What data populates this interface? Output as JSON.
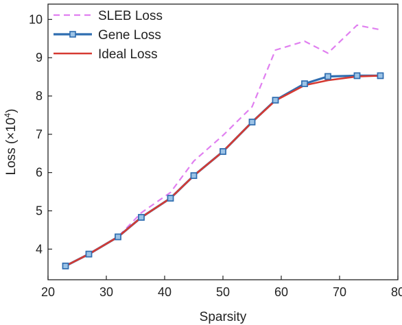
{
  "chart_data": {
    "type": "line",
    "xlabel": "Sparsity",
    "ylabel": "Loss (×10",
    "ylabel_sup": "4",
    "ylabel_close": ")",
    "xlim": [
      20,
      80
    ],
    "ylim": [
      3.2,
      10.4
    ],
    "xticks": [
      20,
      30,
      40,
      50,
      60,
      70,
      80
    ],
    "yticks": [
      4,
      5,
      6,
      7,
      8,
      9,
      10
    ],
    "grid": false,
    "legend_position": "top-left",
    "series": [
      {
        "name": "SLEB Loss",
        "color": "#e07ff0",
        "style": "dashed",
        "x": [
          23,
          27,
          32,
          36,
          41,
          45,
          50,
          55,
          59,
          64,
          68,
          73,
          77
        ],
        "y": [
          3.56,
          3.88,
          4.32,
          4.95,
          5.48,
          6.3,
          6.97,
          7.72,
          9.2,
          9.43,
          9.12,
          9.85,
          9.73
        ]
      },
      {
        "name": "Gene Loss",
        "color": "#2f6db0",
        "style": "solid",
        "marker": "square",
        "x": [
          23,
          27,
          32,
          36,
          41,
          45,
          50,
          55,
          59,
          64,
          68,
          73,
          77
        ],
        "y": [
          3.56,
          3.87,
          4.32,
          4.83,
          5.33,
          5.92,
          6.55,
          7.32,
          7.89,
          8.32,
          8.51,
          8.53,
          8.53
        ]
      },
      {
        "name": "Ideal Loss",
        "color": "#d63a32",
        "style": "solid",
        "x": [
          23,
          27,
          32,
          36,
          41,
          45,
          50,
          55,
          59,
          64,
          68,
          73,
          77
        ],
        "y": [
          3.56,
          3.87,
          4.32,
          4.83,
          5.33,
          5.92,
          6.55,
          7.32,
          7.88,
          8.28,
          8.41,
          8.51,
          8.53
        ]
      }
    ]
  }
}
